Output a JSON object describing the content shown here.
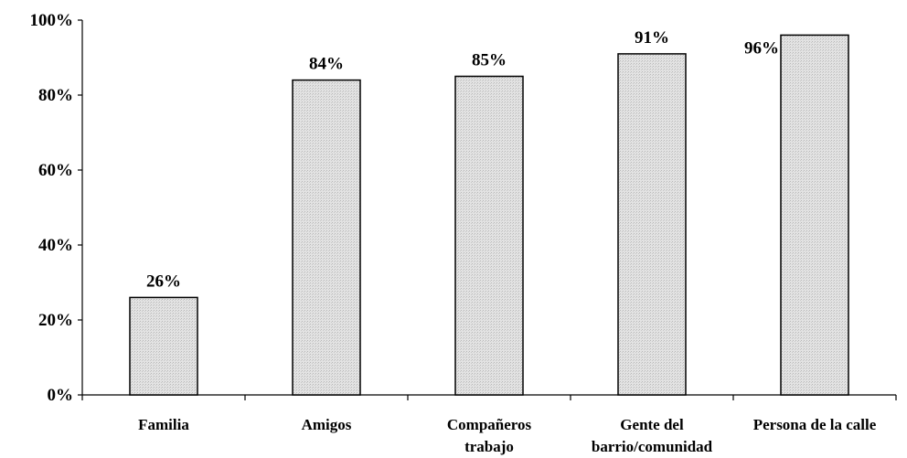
{
  "chart_data": {
    "type": "bar",
    "categories": [
      [
        "Familia"
      ],
      [
        "Amigos"
      ],
      [
        "Compañeros",
        "trabajo"
      ],
      [
        "Gente del",
        "barrio/comunidad"
      ],
      [
        "Persona de la calle"
      ]
    ],
    "values": [
      26,
      84,
      85,
      91,
      96
    ],
    "data_labels": [
      "26%",
      "84%",
      "85%",
      "91%",
      "96%"
    ],
    "y_ticks": [
      {
        "value": 0,
        "label": "0%"
      },
      {
        "value": 20,
        "label": "20%"
      },
      {
        "value": 40,
        "label": "40%"
      },
      {
        "value": 60,
        "label": "60%"
      },
      {
        "value": 80,
        "label": "80%"
      },
      {
        "value": 100,
        "label": "100%"
      }
    ],
    "ylim": [
      0,
      100
    ],
    "title": "",
    "xlabel": "",
    "ylabel": "",
    "grid": false,
    "legend": "none",
    "colors": {
      "bar_fill": "#dcdcdc",
      "bar_stroke": "#000000",
      "axis": "#000000",
      "text": "#000000"
    }
  }
}
